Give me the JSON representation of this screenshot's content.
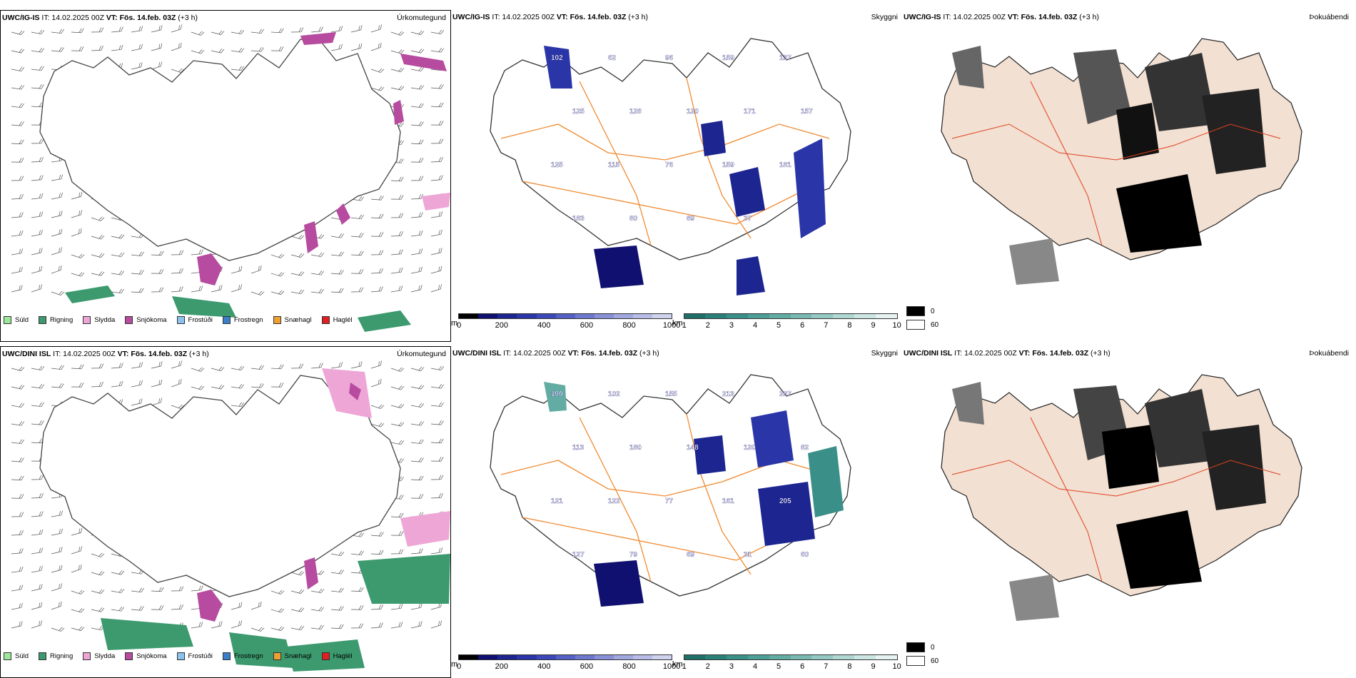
{
  "rows": [
    {
      "header": {
        "model": "UWC/IG-IS",
        "it_label": " IT:",
        "it_value": " 14.02.2025 00Z ",
        "vt_label": "VT:",
        "vt_value": " Fös. 14.feb. 03Z",
        "offset": " (+3 h)"
      },
      "panels": [
        {
          "title": "Úrkomutegund",
          "kind": "precip"
        },
        {
          "title": "Skyggni",
          "kind": "visibility"
        },
        {
          "title": "Þokuábendi",
          "kind": "fog"
        }
      ],
      "vis_labels": [
        "102",
        "62",
        "96",
        "159",
        "137",
        "125",
        "128",
        "120",
        "171",
        "157",
        "125",
        "115",
        "76",
        "159",
        "181",
        "183",
        "80",
        "89",
        "37"
      ]
    },
    {
      "header": {
        "model": "UWC/DINI ISL",
        "it_label": " IT:",
        "it_value": " 14.02.2025 00Z ",
        "vt_label": "VT:",
        "vt_value": " Fös. 14.feb. 03Z",
        "offset": " (+3 h)"
      },
      "panels": [
        {
          "title": "Úrkomutegund",
          "kind": "precip"
        },
        {
          "title": "Skyggni",
          "kind": "visibility"
        },
        {
          "title": "Þokuábendi",
          "kind": "fog"
        }
      ],
      "vis_labels": [
        "100",
        "102",
        "155",
        "213",
        "287",
        "113",
        "180",
        "148",
        "120",
        "82",
        "121",
        "122",
        "77",
        "161",
        "205",
        "127",
        "79",
        "69",
        "31",
        "60"
      ]
    }
  ],
  "precip_legend": [
    {
      "label": "Súld",
      "color": "#9be89b"
    },
    {
      "label": "Rigning",
      "color": "#3c9a6e"
    },
    {
      "label": "Slydda",
      "color": "#eea6d6"
    },
    {
      "label": "Snjókoma",
      "color": "#b64b9f"
    },
    {
      "label": "Frostúði",
      "color": "#8cc2ec"
    },
    {
      "label": "Frostregn",
      "color": "#3a7fc8"
    },
    {
      "label": "Snæhagl",
      "color": "#f0a030"
    },
    {
      "label": "Haglél",
      "color": "#e02020"
    }
  ],
  "elevation_bar": {
    "unit": "m",
    "ticks": [
      "0",
      "200",
      "400",
      "600",
      "800",
      "1000"
    ],
    "colors": [
      "#000000",
      "#101070",
      "#1c2590",
      "#2a35a8",
      "#3c48b8",
      "#5560c4",
      "#6e78cc",
      "#8890d6",
      "#a0a8de",
      "#b8bce6",
      "#d0d3ee"
    ]
  },
  "visibility_bar": {
    "unit": "km",
    "ticks": [
      "1",
      "2",
      "3",
      "4",
      "5",
      "6",
      "7",
      "8",
      "9",
      "10"
    ],
    "colors": [
      "#1f6e68",
      "#2a8078",
      "#3a9088",
      "#4c9e96",
      "#62aca4",
      "#7ab9b2",
      "#94c8c2",
      "#b0d8d3",
      "#cce6e3",
      "#e6f3f1"
    ]
  },
  "fog_legend": [
    {
      "label": "0",
      "color": "#000000"
    },
    {
      "label": "60",
      "color": "#ffffff"
    }
  ]
}
